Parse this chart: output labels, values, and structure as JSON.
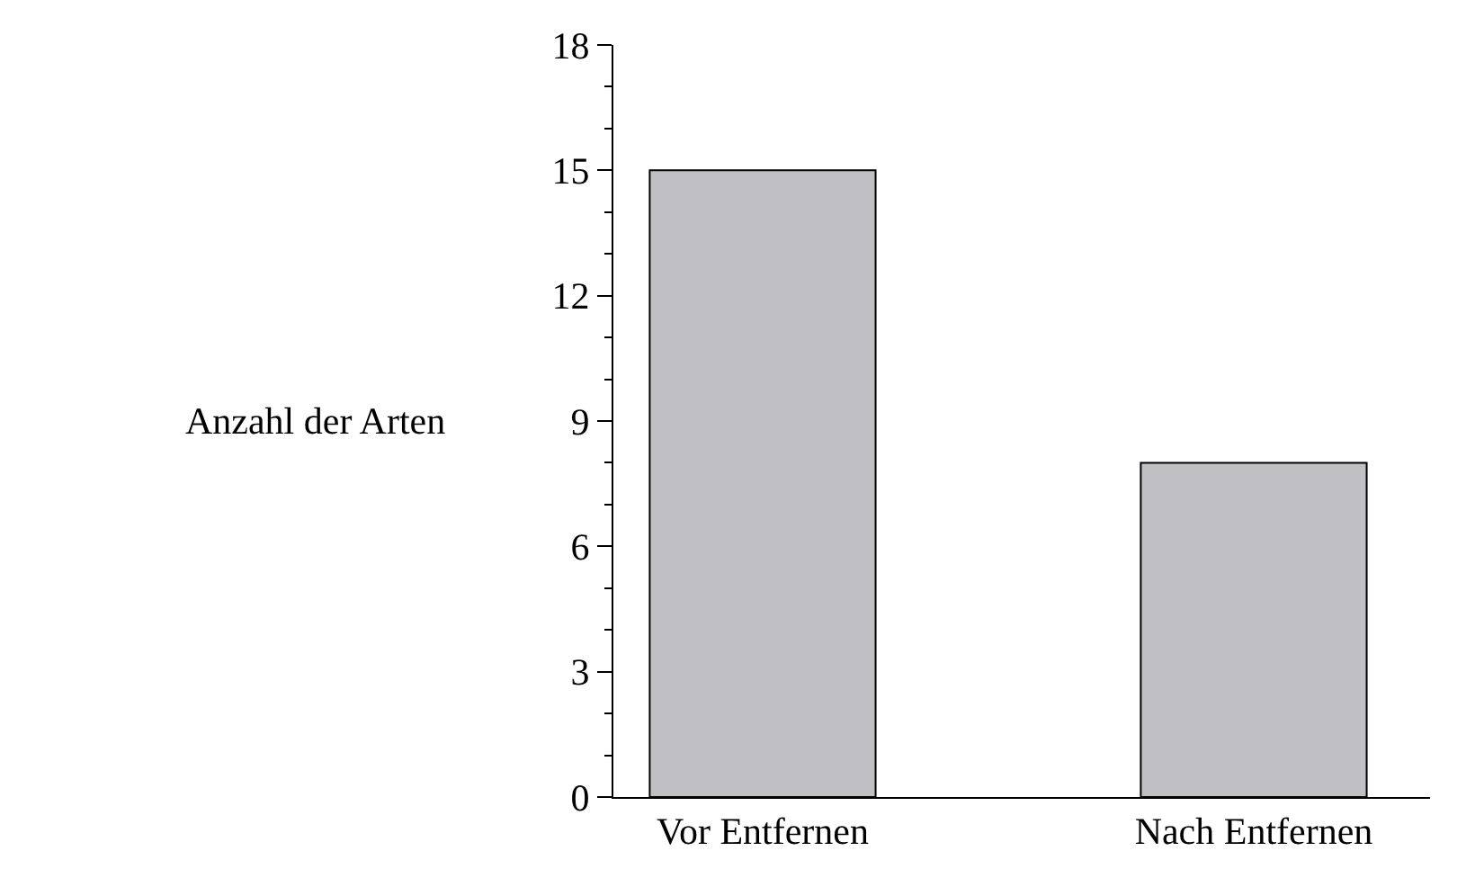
{
  "chart_data": {
    "type": "bar",
    "ylabel": "Anzahl der Arten",
    "categories": [
      "Vor Entfernen",
      "Nach Entfernen"
    ],
    "values": [
      15,
      8
    ],
    "color": "#c0c0c4",
    "ylim": [
      0,
      18
    ],
    "yticks": [
      0,
      {
        "value": 1,
        "label": null
      },
      {
        "value": 2,
        "label": null
      },
      3,
      {
        "value": 4,
        "label": null
      },
      {
        "value": 5,
        "label": null
      },
      6,
      {
        "value": 7,
        "label": null
      },
      {
        "value": 8,
        "label": null
      },
      9,
      {
        "value": 10,
        "label": null
      },
      {
        "value": 11,
        "label": null
      },
      12,
      {
        "value": 13,
        "label": null
      },
      {
        "value": 14,
        "label": null
      },
      15,
      {
        "value": 16,
        "label": null
      },
      {
        "value": 17,
        "label": null
      },
      18
    ],
    "legend": false
  }
}
